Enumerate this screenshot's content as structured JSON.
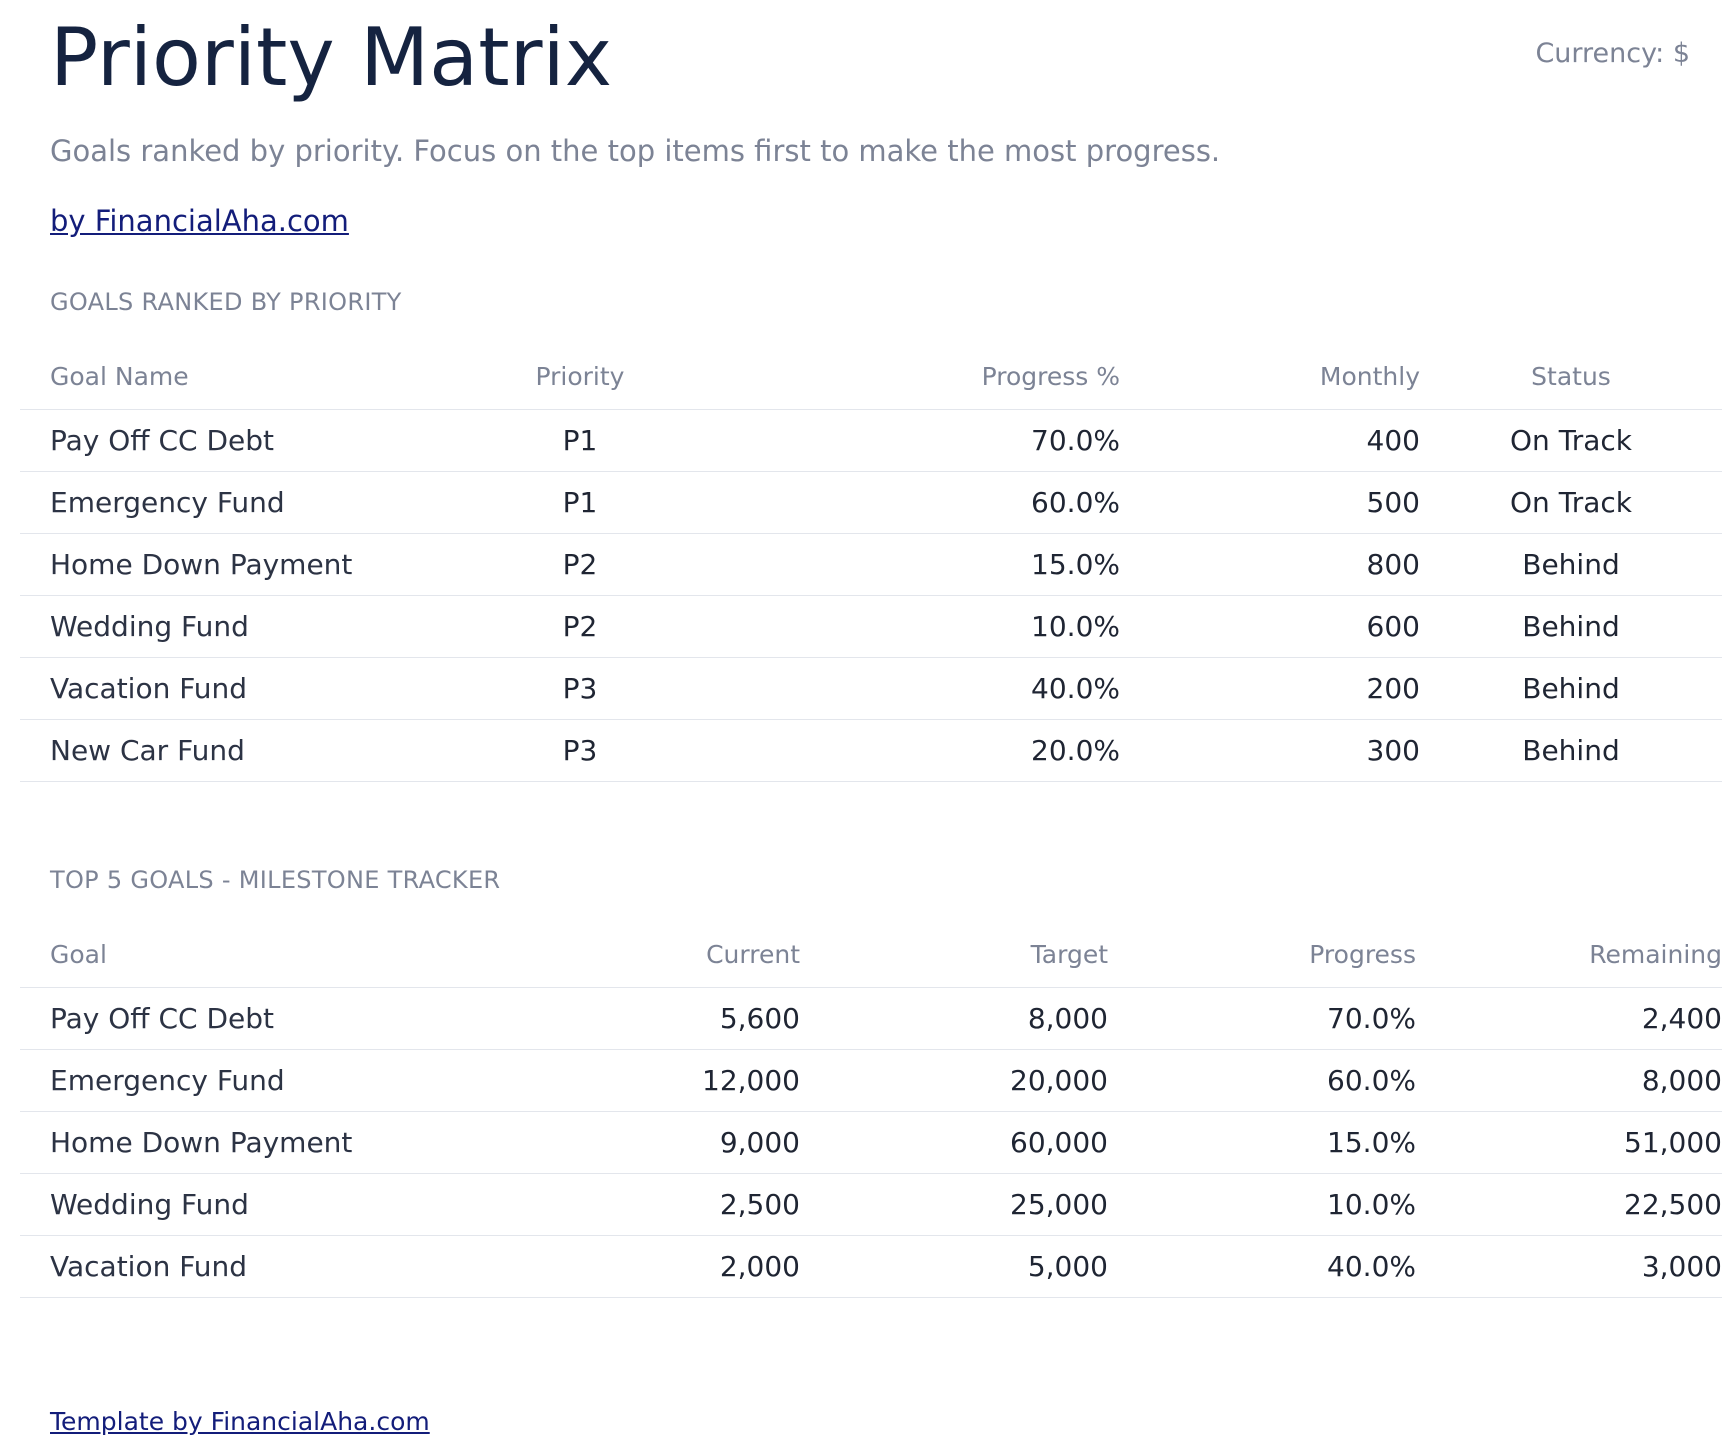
{
  "header": {
    "title": "Priority Matrix",
    "currency": "Currency: $",
    "subtitle": "Goals ranked by priority. Focus on the top items first to make the most progress.",
    "brand_link": "by FinancialAha.com"
  },
  "priority_table": {
    "section_label": "GOALS RANKED BY PRIORITY",
    "columns": [
      "Goal Name",
      "Priority",
      "Progress %",
      "Monthly",
      "Status"
    ],
    "rows": [
      [
        "Pay Off CC Debt",
        "P1",
        "70.0%",
        "400",
        "On Track"
      ],
      [
        "Emergency Fund",
        "P1",
        "60.0%",
        "500",
        "On Track"
      ],
      [
        "Home Down Payment",
        "P2",
        "15.0%",
        "800",
        "Behind"
      ],
      [
        "Wedding Fund",
        "P2",
        "10.0%",
        "600",
        "Behind"
      ],
      [
        "Vacation Fund",
        "P3",
        "40.0%",
        "200",
        "Behind"
      ],
      [
        "New Car Fund",
        "P3",
        "20.0%",
        "300",
        "Behind"
      ]
    ]
  },
  "milestone_table": {
    "section_label": "TOP 5 GOALS - MILESTONE TRACKER",
    "columns": [
      "Goal",
      "Current",
      "Target",
      "Progress",
      "Remaining"
    ],
    "rows": [
      [
        "Pay Off CC Debt",
        "5,600",
        "8,000",
        "70.0%",
        "2,400"
      ],
      [
        "Emergency Fund",
        "12,000",
        "20,000",
        "60.0%",
        "8,000"
      ],
      [
        "Home Down Payment",
        "9,000",
        "60,000",
        "15.0%",
        "51,000"
      ],
      [
        "Wedding Fund",
        "2,500",
        "25,000",
        "10.0%",
        "22,500"
      ],
      [
        "Vacation Fund",
        "2,000",
        "5,000",
        "40.0%",
        "3,000"
      ]
    ]
  },
  "footer": {
    "link": "Template by FinancialAha.com"
  }
}
